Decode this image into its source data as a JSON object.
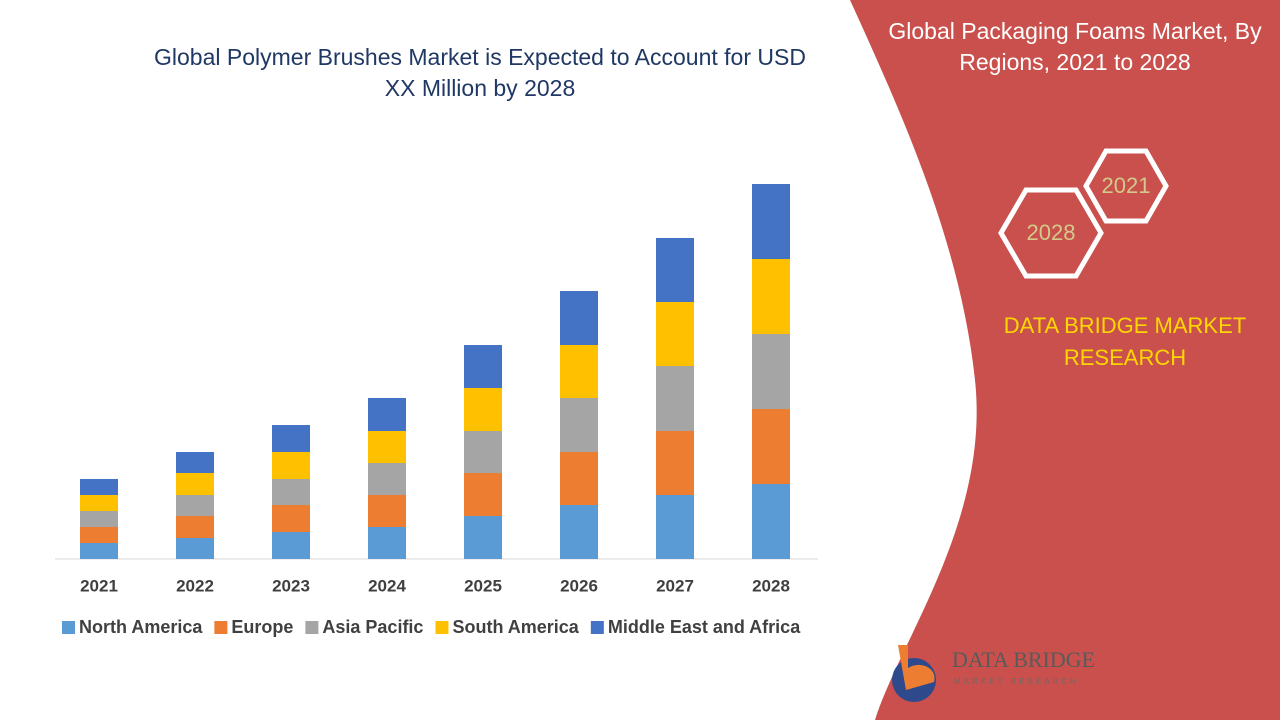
{
  "chart_data": {
    "type": "stacked-bar",
    "title": "Global Polymer Brushes Market is Expected to Account for USD XX Million by 2028",
    "categories": [
      "2021",
      "2022",
      "2023",
      "2024",
      "2025",
      "2026",
      "2027",
      "2028"
    ],
    "series": [
      {
        "name": "North America",
        "color": "#5b9bd5",
        "values": [
          16,
          21,
          27,
          32,
          43,
          54,
          64,
          75
        ]
      },
      {
        "name": "Europe",
        "color": "#ed7d31",
        "values": [
          16,
          22,
          27,
          32,
          43,
          53,
          64,
          75
        ]
      },
      {
        "name": "Asia Pacific",
        "color": "#a5a5a5",
        "values": [
          16,
          21,
          26,
          32,
          42,
          54,
          65,
          75
        ]
      },
      {
        "name": "South America",
        "color": "#ffc000",
        "values": [
          16,
          22,
          27,
          32,
          43,
          53,
          64,
          75
        ]
      },
      {
        "name": "Middle East and Africa",
        "color": "#4472c4",
        "values": [
          16,
          21,
          27,
          33,
          43,
          54,
          64,
          75
        ]
      }
    ],
    "ylim": [
      0,
      400
    ],
    "legend": "bottom"
  },
  "side_panel": {
    "title": "Global Packaging Foams Market, By Regions, 2021 to 2028",
    "hexagons": [
      "2021",
      "2028"
    ],
    "brand": "DATA BRIDGE MARKET RESEARCH",
    "logo": {
      "name": "DATA BRIDGE",
      "tagline": "MARKET RESEARCH"
    }
  }
}
